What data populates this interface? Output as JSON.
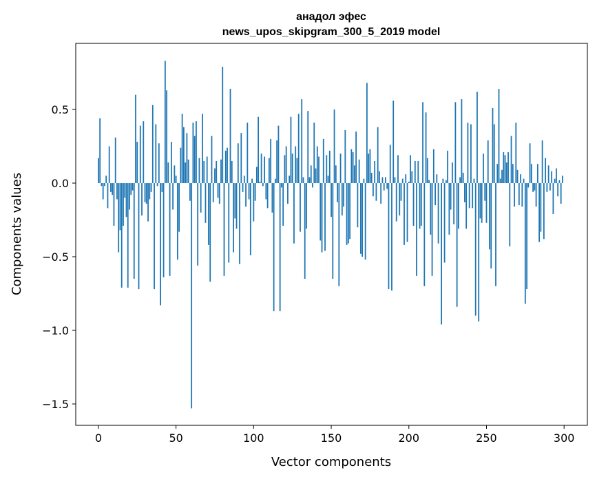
{
  "chart_data": {
    "type": "bar",
    "title": [
      "анадол эфес",
      "news_upos_skipgram_300_5_2019 model"
    ],
    "xlabel": "Vector components",
    "ylabel": "Components values",
    "xlim": [
      -14.6,
      315
    ],
    "ylim": [
      -1.645,
      0.949
    ],
    "xticks": [
      0,
      50,
      100,
      150,
      200,
      250,
      300
    ],
    "xtick_labels": [
      "0",
      "50",
      "100",
      "150",
      "200",
      "250",
      "300"
    ],
    "yticks": [
      0.5,
      0.0,
      -0.5,
      -1.0,
      -1.5
    ],
    "ytick_labels": [
      "0.5",
      "0.0",
      "−0.5",
      "−1.0",
      "−1.5"
    ],
    "grid": false,
    "color": "#1f77b4",
    "values": [
      0.17,
      0.44,
      -0.02,
      -0.11,
      -0.02,
      0.05,
      -0.17,
      0.25,
      -0.06,
      -0.08,
      -0.29,
      0.31,
      -0.11,
      -0.47,
      -0.32,
      -0.71,
      -0.29,
      -0.1,
      -0.23,
      -0.71,
      -0.18,
      -0.08,
      -0.05,
      -0.65,
      0.6,
      0.28,
      -0.72,
      0.39,
      -0.22,
      0.42,
      -0.13,
      -0.14,
      -0.26,
      -0.11,
      -0.06,
      0.53,
      -0.72,
      0.4,
      -0.02,
      0.27,
      -0.83,
      -0.06,
      -0.64,
      0.83,
      0.63,
      0.14,
      -0.63,
      0.28,
      -0.18,
      0.12,
      0.05,
      -0.52,
      -0.33,
      0.24,
      0.47,
      0.38,
      0.14,
      0.34,
      0.16,
      -0.12,
      -1.53,
      0.41,
      0.32,
      0.42,
      -0.56,
      0.17,
      -0.2,
      0.47,
      0.15,
      -0.27,
      0.18,
      -0.42,
      -0.67,
      0.32,
      -0.13,
      0.1,
      0.15,
      -0.1,
      -0.14,
      0.16,
      0.79,
      -0.63,
      0.22,
      0.24,
      -0.54,
      0.64,
      0.15,
      -0.47,
      -0.24,
      -0.31,
      0.27,
      -0.55,
      0.34,
      -0.06,
      0.05,
      -0.16,
      0.41,
      -0.11,
      -0.49,
      0.03,
      -0.26,
      -0.12,
      0.11,
      0.45,
      0.01,
      0.2,
      -0.02,
      0.18,
      -0.11,
      -0.17,
      0.17,
      0.3,
      -0.2,
      -0.87,
      0.03,
      0.29,
      0.39,
      -0.87,
      -0.03,
      -0.29,
      0.19,
      0.25,
      -0.14,
      0.05,
      0.45,
      0.2,
      -0.41,
      0.25,
      0.17,
      0.47,
      -0.33,
      0.57,
      0.04,
      -0.65,
      -0.31,
      0.49,
      0.04,
      0.12,
      -0.03,
      0.41,
      0.1,
      0.25,
      0.18,
      -0.39,
      -0.47,
      0.3,
      -0.46,
      0.19,
      0.05,
      0.22,
      -0.23,
      -0.65,
      0.5,
      0.12,
      -0.13,
      -0.7,
      0.2,
      -0.22,
      -0.16,
      0.36,
      -0.42,
      -0.41,
      -0.38,
      0.23,
      0.21,
      0.12,
      0.35,
      -0.3,
      0.16,
      -0.48,
      -0.5,
      0.03,
      -0.52,
      0.68,
      0.2,
      0.23,
      0.07,
      -0.09,
      0.15,
      -0.12,
      0.38,
      0.08,
      -0.14,
      0.04,
      -0.05,
      0.04,
      -0.04,
      -0.72,
      0.26,
      -0.73,
      0.56,
      0.04,
      -0.26,
      0.19,
      -0.22,
      -0.12,
      0.03,
      -0.42,
      0.06,
      -0.4,
      0.01,
      0.19,
      0.08,
      -0.29,
      0.15,
      -0.63,
      0.15,
      -0.31,
      -0.29,
      0.55,
      -0.7,
      0.48,
      0.17,
      0.02,
      -0.35,
      -0.63,
      0.23,
      -0.15,
      0.06,
      -0.41,
      0.0,
      -0.96,
      0.03,
      -0.54,
      0.02,
      0.22,
      -0.35,
      -0.18,
      0.14,
      -0.28,
      0.55,
      -0.84,
      -0.31,
      0.04,
      0.57,
      0.07,
      -0.13,
      -0.31,
      0.41,
      -0.17,
      0.4,
      -0.17,
      0.03,
      -0.9,
      0.62,
      -0.94,
      -0.24,
      -0.27,
      0.2,
      -0.12,
      -0.27,
      0.29,
      -0.45,
      -0.58,
      0.51,
      0.4,
      -0.7,
      0.13,
      0.64,
      0.03,
      0.09,
      0.21,
      0.19,
      0.14,
      0.21,
      -0.43,
      0.32,
      0.13,
      -0.16,
      0.41,
      0.09,
      -0.15,
      0.06,
      -0.16,
      0.03,
      -0.82,
      -0.72,
      -0.03,
      0.27,
      0.13,
      -0.06,
      -0.05,
      -0.16,
      0.13,
      -0.4,
      -0.33,
      0.29,
      -0.38,
      0.17,
      -0.06,
      0.12,
      -0.05,
      0.08,
      -0.21,
      0.03,
      0.1,
      -0.09,
      0.02,
      -0.14,
      0.05
    ]
  }
}
